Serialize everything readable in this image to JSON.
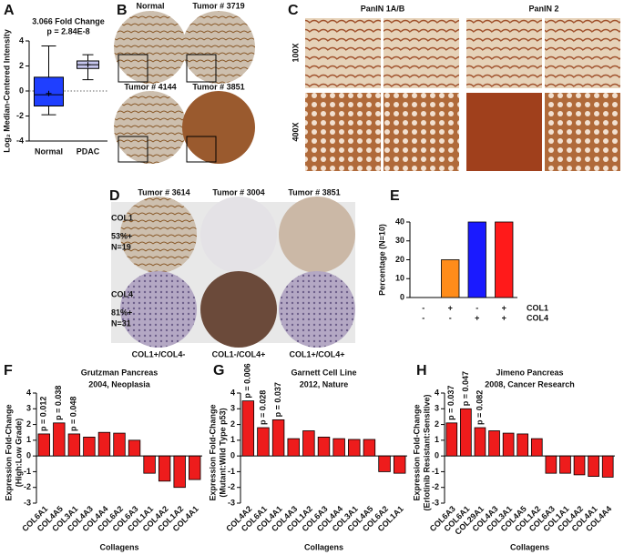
{
  "panel_labels": [
    "A",
    "B",
    "C",
    "D",
    "E",
    "F",
    "G",
    "H"
  ],
  "panel_b": {
    "labels": [
      "Normal",
      "Tumor # 3719",
      "Tumor # 4144",
      "Tumor # 3851"
    ]
  },
  "panel_c": {
    "columns": [
      "PanIN 1A/B",
      "PanIN 2"
    ],
    "rows": [
      "100X",
      "400X"
    ]
  },
  "panel_d": {
    "columns": [
      "Tumor # 3614",
      "Tumor # 3004",
      "Tumor # 3851"
    ],
    "rows": [
      {
        "name": "COL1",
        "percent": "53%+",
        "n": "N=19"
      },
      {
        "name": "COL4",
        "percent": "81%+",
        "n": "N=31"
      }
    ],
    "footers": [
      "COL1+/COL4-",
      "COL1-/COL4+",
      "COL1+/COL4+"
    ]
  },
  "chart_data": [
    {
      "type": "box",
      "title_lines": [
        "3.066 Fold Change",
        "p = 2.84E-8"
      ],
      "ylabel": "Log₂ Median-Centered Intensity",
      "categories": [
        "Normal",
        "PDAC"
      ],
      "boxes": [
        {
          "min": -1.9,
          "q1": -1.2,
          "median": -0.3,
          "q3": 1.1,
          "max": 3.6,
          "mean": -0.2
        },
        {
          "min": 0.9,
          "q1": 1.8,
          "median": 2.1,
          "q3": 2.4,
          "max": 2.9,
          "mean": 2.1
        }
      ],
      "colors": [
        "#1f3fff",
        "#c6c6ee"
      ],
      "reference_line": 0,
      "ylim": [
        -4,
        4
      ],
      "yticks": [
        -4,
        -2,
        0,
        2,
        4
      ]
    },
    {
      "type": "bar",
      "ylabel": "Percentage (N=10)",
      "values": [
        0,
        20,
        40,
        40
      ],
      "colors": [
        "#ffffff",
        "#ff8c1a",
        "#1a1aff",
        "#ff1a1a"
      ],
      "sign_rows": [
        {
          "label": "COL1",
          "signs": [
            "-",
            "+",
            "-",
            "+"
          ]
        },
        {
          "label": "COL4",
          "signs": [
            "-",
            "-",
            "+",
            "+"
          ]
        }
      ],
      "ylim": [
        0,
        40
      ],
      "yticks": [
        0,
        10,
        20,
        30,
        40
      ]
    },
    {
      "type": "bar",
      "title_lines": [
        "Grutzman Pancreas",
        "2004, Neoplasia"
      ],
      "ylabel_lines": [
        "Expression Fold-Change",
        "(High:Low Grade)"
      ],
      "xlabel": "Collagens",
      "categories": [
        "COL6A1",
        "COL4A5",
        "COL3A1",
        "COL4A3",
        "COL4A4",
        "COL6A2",
        "COL6A3",
        "COL1A1",
        "COL4A2",
        "COL1A2",
        "COL4A1"
      ],
      "values": [
        1.4,
        2.1,
        1.4,
        1.2,
        1.5,
        1.45,
        1.0,
        -1.1,
        -1.6,
        -2.0,
        -1.5
      ],
      "value_annotations": [
        "p = 0.012",
        "p = 0.038",
        "p = 0.048",
        null,
        null,
        null,
        null,
        null,
        null,
        null,
        null
      ],
      "color": "#ee1c1c",
      "ylim": [
        -3,
        4
      ],
      "yticks": [
        -3,
        -2,
        -1,
        0,
        1,
        2,
        3,
        4
      ]
    },
    {
      "type": "bar",
      "title_lines": [
        "Garnett Cell Line",
        "2012, Nature"
      ],
      "ylabel_lines": [
        "Expression Fold-Change",
        "(Mutant:Wild Type p53)"
      ],
      "xlabel": "Collagens",
      "categories": [
        "COL4A2",
        "COL6A1",
        "COL4A1",
        "COL4A3",
        "COL1A2",
        "COL6A3",
        "COL4A4",
        "COL3A1",
        "COL4A5",
        "COL6A2",
        "COL1A1"
      ],
      "values": [
        3.5,
        1.8,
        2.3,
        1.1,
        1.6,
        1.2,
        1.1,
        1.05,
        1.05,
        -1.0,
        -1.1
      ],
      "value_annotations": [
        "p = 0.006",
        "p = 0.028",
        "p = 0.037",
        null,
        null,
        null,
        null,
        null,
        null,
        null,
        null
      ],
      "color": "#ee1c1c",
      "ylim": [
        -3,
        4
      ],
      "yticks": [
        -3,
        -2,
        -1,
        0,
        1,
        2,
        3,
        4
      ]
    },
    {
      "type": "bar",
      "title_lines": [
        "Jimeno Pancreas",
        "2008, Cancer Research"
      ],
      "ylabel_lines": [
        "Expression Fold-Change",
        "(Erlotinib Resistant:Sensitive)"
      ],
      "xlabel": "Collagens",
      "categories": [
        "COL6A3",
        "COL6A1",
        "COL29A1",
        "COL4A3",
        "COL3A1",
        "COL4A5",
        "COL1A2",
        "COL6A3",
        "COL1A1",
        "COL4A2",
        "COL4A1",
        "COL4A4"
      ],
      "values": [
        2.1,
        3.0,
        1.8,
        1.6,
        1.45,
        1.4,
        1.1,
        -1.1,
        -1.1,
        -1.2,
        -1.3,
        -1.35
      ],
      "value_annotations": [
        "p = 0.037",
        "p = 0.047",
        "p = 0.082",
        null,
        null,
        null,
        null,
        null,
        null,
        null,
        null,
        null
      ],
      "color": "#ee1c1c",
      "ylim": [
        -3,
        4
      ],
      "yticks": [
        -3,
        -2,
        -1,
        0,
        1,
        2,
        3,
        4
      ]
    }
  ]
}
